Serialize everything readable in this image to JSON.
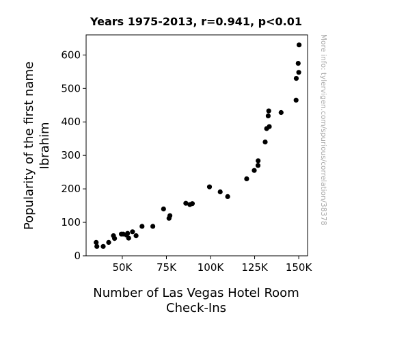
{
  "chart_data": {
    "type": "scatter",
    "title": "Years 1975-2013, r=0.941, p<0.01",
    "xlabel": [
      "Number of Las Vegas Hotel Room",
      "Check-Ins"
    ],
    "ylabel": [
      "Popularity of the first name",
      "Ibrahim"
    ],
    "xlim": [
      29500,
      155000
    ],
    "ylim": [
      0,
      660
    ],
    "xticks": [
      {
        "value": 50000,
        "label": "50K"
      },
      {
        "value": 75000,
        "label": "75K"
      },
      {
        "value": 100000,
        "label": "100K"
      },
      {
        "value": 125000,
        "label": "125K"
      },
      {
        "value": 150000,
        "label": "150K"
      }
    ],
    "yticks": [
      {
        "value": 0,
        "label": "0"
      },
      {
        "value": 100,
        "label": "100"
      },
      {
        "value": 200,
        "label": "200"
      },
      {
        "value": 300,
        "label": "300"
      },
      {
        "value": 400,
        "label": "400"
      },
      {
        "value": 500,
        "label": "500"
      },
      {
        "value": 600,
        "label": "600"
      }
    ],
    "grid": false,
    "marker_color": "#000000",
    "points": [
      {
        "x": 35200,
        "y": 40
      },
      {
        "x": 35600,
        "y": 28
      },
      {
        "x": 39200,
        "y": 28
      },
      {
        "x": 42300,
        "y": 40
      },
      {
        "x": 45000,
        "y": 60
      },
      {
        "x": 45600,
        "y": 52
      },
      {
        "x": 49500,
        "y": 65
      },
      {
        "x": 50500,
        "y": 65
      },
      {
        "x": 52400,
        "y": 62
      },
      {
        "x": 53000,
        "y": 67
      },
      {
        "x": 53600,
        "y": 53
      },
      {
        "x": 55800,
        "y": 72
      },
      {
        "x": 57800,
        "y": 60
      },
      {
        "x": 61200,
        "y": 88
      },
      {
        "x": 67300,
        "y": 88
      },
      {
        "x": 73400,
        "y": 140
      },
      {
        "x": 76500,
        "y": 112
      },
      {
        "x": 77000,
        "y": 120
      },
      {
        "x": 86000,
        "y": 157
      },
      {
        "x": 88300,
        "y": 153
      },
      {
        "x": 89700,
        "y": 156
      },
      {
        "x": 99400,
        "y": 206
      },
      {
        "x": 105500,
        "y": 191
      },
      {
        "x": 109700,
        "y": 177
      },
      {
        "x": 120500,
        "y": 230
      },
      {
        "x": 124800,
        "y": 255
      },
      {
        "x": 126900,
        "y": 270
      },
      {
        "x": 127000,
        "y": 284
      },
      {
        "x": 131000,
        "y": 340
      },
      {
        "x": 131800,
        "y": 380
      },
      {
        "x": 132700,
        "y": 418
      },
      {
        "x": 133000,
        "y": 433
      },
      {
        "x": 133300,
        "y": 386
      },
      {
        "x": 140000,
        "y": 428
      },
      {
        "x": 148500,
        "y": 465
      },
      {
        "x": 148600,
        "y": 530
      },
      {
        "x": 149700,
        "y": 575
      },
      {
        "x": 150000,
        "y": 548
      },
      {
        "x": 150200,
        "y": 630
      }
    ]
  },
  "watermark": "More info: tylervigen.com/spurious/correlation/38378"
}
